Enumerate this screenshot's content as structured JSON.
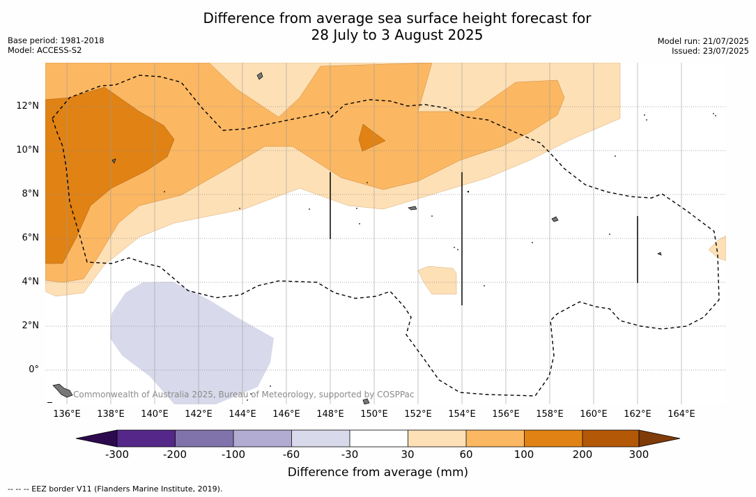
{
  "header": {
    "title_line1": "Difference from average sea surface height forecast for",
    "title_line2": "28 July to 3 August 2025",
    "base_period": "Base period: 1981-2018",
    "model": "Model: ACCESS-S2",
    "model_run": "Model run: 21/07/2025",
    "issued": "Issued: 23/07/2025"
  },
  "map": {
    "lat_labels": [
      "12°N",
      "10°N",
      "8°N",
      "6°N",
      "4°N",
      "2°N",
      "0°"
    ],
    "lon_labels": [
      "136°E",
      "138°E",
      "140°E",
      "142°E",
      "144°E",
      "146°E",
      "148°E",
      "150°E",
      "152°E",
      "154°E",
      "156°E",
      "158°E",
      "160°E",
      "162°E",
      "164°E"
    ],
    "credit": "Commonwealth of Australia 2025, Bureau of Meteorology, supported by COSPPac"
  },
  "colorbar": {
    "title": "Difference from average (mm)",
    "tick_labels": [
      "-300",
      "-200",
      "-100",
      "-60",
      "-30",
      "30",
      "60",
      "100",
      "200",
      "300"
    ],
    "colors": {
      "below_-300": "#2d0a4e",
      "-300_-200": "#542788",
      "-200_-100": "#8073ac",
      "-100_-60": "#b2abd2",
      "-60_-30": "#d8daeb",
      "-30_30": "#ffffff",
      "30_60": "#fee0b6",
      "60_100": "#fbb762",
      "100_200": "#e08214",
      "200_300": "#b35806",
      "above_300": "#7f3b08"
    }
  },
  "footer": {
    "legend": "--  --  -- EEZ border V11 (Flanders Marine Institute, 2019)."
  }
}
